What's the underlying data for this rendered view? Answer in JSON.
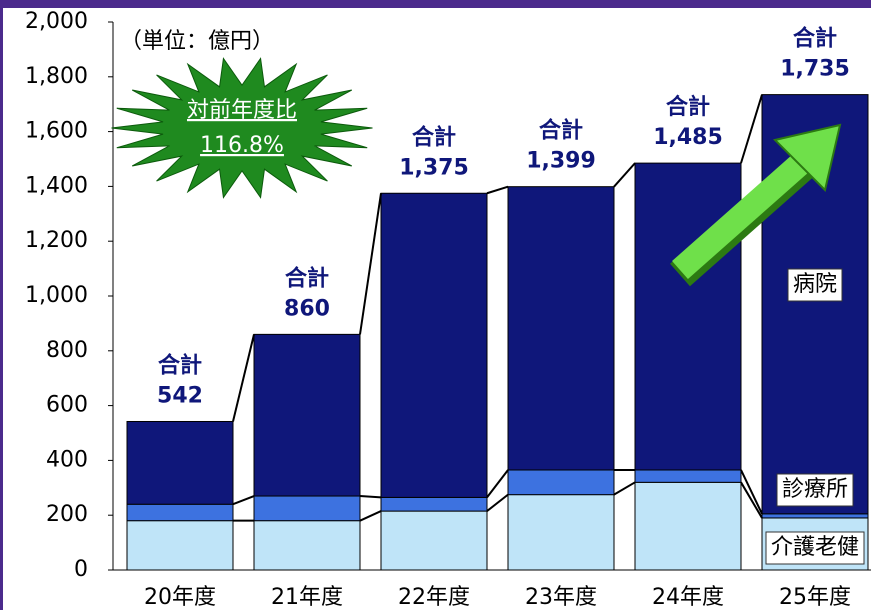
{
  "chart_data": {
    "type": "stacked_bar",
    "unit_note": "（単位：億円）",
    "annotation": {
      "title": "対前年度比",
      "value": "116.8%"
    },
    "categories": [
      "20年度",
      "21年度",
      "22年度",
      "23年度",
      "24年度",
      "25年度"
    ],
    "series": [
      {
        "name": "介護老健",
        "color": "#bfe4f8",
        "values": [
          180,
          180,
          215,
          275,
          320,
          190
        ]
      },
      {
        "name": "診療所",
        "color": "#3d72e0",
        "values": [
          60,
          90,
          50,
          90,
          45,
          15
        ]
      },
      {
        "name": "病院",
        "color": "#0f177a",
        "values": [
          302,
          590,
          1110,
          1034,
          1120,
          1530
        ]
      }
    ],
    "total_label": "合計",
    "totals": [
      542,
      860,
      1375,
      1399,
      1485,
      1735
    ],
    "total_value_labels": [
      "542",
      "860",
      "1,375",
      "1,399",
      "1,485",
      "1,735"
    ],
    "ylim": [
      0,
      2000
    ],
    "yticks": [
      0,
      200,
      400,
      600,
      800,
      {
        "value": 1000,
        "label": "1,000"
      },
      {
        "value": 1200,
        "label": "1,200"
      },
      {
        "value": 1400,
        "label": "1,400"
      },
      {
        "value": 1600,
        "label": "1,600"
      },
      {
        "value": 1800,
        "label": "1,800"
      },
      {
        "value": 2000,
        "label": "2,000"
      }
    ]
  }
}
